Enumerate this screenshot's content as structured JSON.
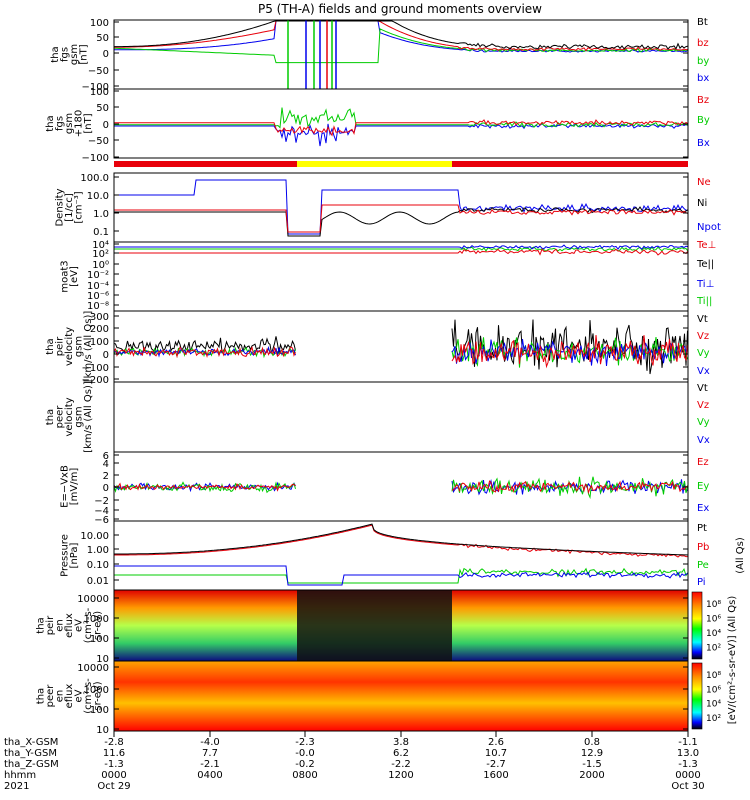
{
  "title": "P5 (TH-A) fields and ground moments overview",
  "colors": {
    "black": "#000000",
    "red": "#e8000b",
    "green": "#00cc00",
    "blue": "#0000ee",
    "yellow": "#ffff00"
  },
  "chart_data": {
    "type": "line",
    "date_label": "2021",
    "x_start_label": "Oct 29",
    "x_end_label": "Oct 30",
    "footer_rows": [
      {
        "label": "tha_X-GSM",
        "values": [
          "-2.8",
          "-4.0",
          "-2.3",
          "3.8",
          "2.6",
          "0.8",
          "-1.1"
        ]
      },
      {
        "label": "tha_Y-GSM",
        "values": [
          "11.6",
          "7.7",
          "-0.0",
          "6.2",
          "10.7",
          "12.9",
          "13.0"
        ]
      },
      {
        "label": "tha_Z-GSM",
        "values": [
          "-1.3",
          "-2.1",
          "-0.2",
          "-2.2",
          "-2.7",
          "-1.5",
          "-1.3"
        ]
      },
      {
        "label": "hhmm",
        "values": [
          "0000",
          "0400",
          "0800",
          "1200",
          "1600",
          "2000",
          "0000"
        ]
      }
    ],
    "panels": [
      {
        "ylabel": [
          "tha",
          "fgs",
          "gsm",
          "[nT]"
        ],
        "yticks": [
          "100",
          "50",
          "0",
          "−50",
          "−100"
        ],
        "legend": [
          {
            "name": "Bt",
            "color": "#000000"
          },
          {
            "name": "bz",
            "color": "#e8000b"
          },
          {
            "name": "by",
            "color": "#00cc00"
          },
          {
            "name": "bx",
            "color": "#0000ee"
          }
        ]
      },
      {
        "ylabel": [
          "tha",
          "fgs",
          "gsm",
          "+180",
          "[nT]"
        ],
        "yticks": [
          "100",
          "50",
          "0",
          "−50",
          "−100"
        ],
        "legend": [
          {
            "name": "Bz",
            "color": "#e8000b"
          },
          {
            "name": "By",
            "color": "#00cc00"
          },
          {
            "name": "Bx",
            "color": "#0000ee"
          }
        ]
      },
      {
        "ylabel": [
          "Density",
          "[1/cc]",
          "[cm⁻³]"
        ],
        "yticks": [
          "100.0",
          "10.0",
          "1.0",
          "0.1"
        ],
        "legend": [
          {
            "name": "Ne",
            "color": "#e8000b"
          },
          {
            "name": "Ni",
            "color": "#000000"
          },
          {
            "name": "Npot",
            "color": "#0000ee"
          }
        ]
      },
      {
        "ylabel": [
          "moat3",
          "[eV]"
        ],
        "yticks": [
          "10⁴",
          "10²",
          "10⁰",
          "10⁻²",
          "10⁻⁴",
          "10⁻⁶",
          "10⁻⁸"
        ],
        "legend": [
          {
            "name": "Te⊥",
            "color": "#e8000b"
          },
          {
            "name": "Te||",
            "color": "#000000"
          },
          {
            "name": "Ti⊥",
            "color": "#0000ee"
          },
          {
            "name": "Ti||",
            "color": "#00cc00"
          }
        ]
      },
      {
        "ylabel": [
          "tha",
          "peir",
          "velocity",
          "gsm",
          "[km/s (All Qs)]"
        ],
        "yticks": [
          "300",
          "200",
          "100",
          "0",
          "−100",
          "−200"
        ],
        "legend": [
          {
            "name": "Vt",
            "color": "#000000"
          },
          {
            "name": "Vz",
            "color": "#e8000b"
          },
          {
            "name": "Vy",
            "color": "#00cc00"
          },
          {
            "name": "Vx",
            "color": "#0000ee"
          }
        ]
      },
      {
        "ylabel": [
          "tha",
          "peer",
          "velocity",
          "gsm",
          "[km/s (All Qs)]"
        ],
        "yticks": [],
        "legend": [
          {
            "name": "Vt",
            "color": "#000000"
          },
          {
            "name": "Vz",
            "color": "#e8000b"
          },
          {
            "name": "Vy",
            "color": "#00cc00"
          },
          {
            "name": "Vx",
            "color": "#0000ee"
          }
        ]
      },
      {
        "ylabel": [
          "E=−VxB",
          "[mV/m]"
        ],
        "yticks": [
          "6",
          "4",
          "2",
          "0",
          "−2",
          "−4",
          "−6"
        ],
        "legend": [
          {
            "name": "Ez",
            "color": "#e8000b"
          },
          {
            "name": "Ey",
            "color": "#00cc00"
          },
          {
            "name": "Ex",
            "color": "#0000ee"
          }
        ]
      },
      {
        "ylabel": [
          "Pressure",
          "[nPa]"
        ],
        "yticks": [
          "10.00",
          "1.00",
          "0.10",
          "0.01"
        ],
        "legend": [
          {
            "name": "Pt",
            "color": "#000000"
          },
          {
            "name": "Pb",
            "color": "#e8000b"
          },
          {
            "name": "Pe",
            "color": "#00cc00"
          },
          {
            "name": "Pi",
            "color": "#0000ee"
          }
        ],
        "right_note": "(All Qs)"
      },
      {
        "ylabel": [
          "tha",
          "peir",
          "en",
          "eflux",
          "eV",
          "(cm²-s-",
          "sr-eV)"
        ],
        "yticks": [
          "10000",
          "1000",
          "100",
          "10"
        ],
        "colorbar_ticks": [
          "10⁸",
          "10⁶",
          "10⁴",
          "10²"
        ]
      },
      {
        "ylabel": [
          "tha",
          "peer",
          "en",
          "eflux",
          "eV",
          "(cm²-s-",
          "sr-eV)"
        ],
        "yticks": [
          "10000",
          "1000",
          "100",
          "10"
        ],
        "colorbar_ticks": [
          "10⁸",
          "10⁶",
          "10⁴",
          "10²"
        ]
      }
    ],
    "colorbar_title": "[eV/(cm²-s-sr-eV)] (All Qs)"
  }
}
